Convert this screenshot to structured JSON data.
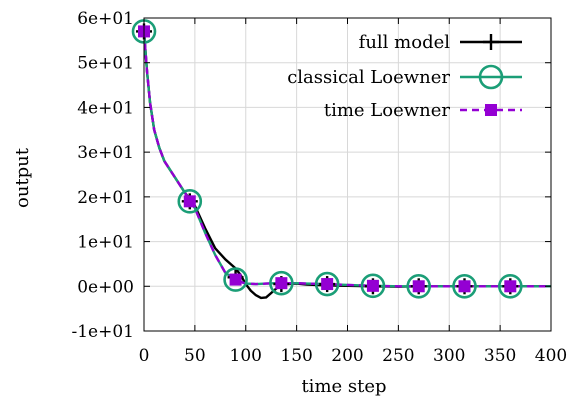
{
  "chart_data": {
    "type": "line",
    "title": "",
    "xlabel": "time step",
    "ylabel": "output",
    "xlim": [
      0,
      400
    ],
    "ylim": [
      -10,
      60
    ],
    "x_ticks": [
      "0",
      "50",
      "100",
      "150",
      "200",
      "250",
      "300",
      "350",
      "400"
    ],
    "y_ticks": [
      "-1e+01",
      "0e+00",
      "1e+01",
      "2e+01",
      "3e+01",
      "4e+01",
      "5e+01",
      "6e+01"
    ],
    "grid": true,
    "legend_position": "top-right",
    "series": [
      {
        "name": "full model",
        "color": "#000000",
        "style": "solid line with plus markers",
        "x": [
          0,
          3,
          6,
          10,
          15,
          20,
          30,
          40,
          45,
          50,
          60,
          70,
          80,
          90,
          95,
          100,
          105,
          110,
          115,
          120,
          125,
          130,
          135,
          140,
          150,
          160,
          180,
          200,
          225,
          250,
          270,
          300,
          315,
          340,
          360,
          380,
          400
        ],
        "y": [
          57,
          48,
          41,
          35,
          31,
          28,
          24.5,
          21,
          19.5,
          18,
          13,
          8.5,
          6,
          4,
          2.5,
          0.5,
          -1,
          -2,
          -2.6,
          -2.5,
          -1.5,
          -0.5,
          0.2,
          0.5,
          0.6,
          0.4,
          0.2,
          0.1,
          0.0,
          -0.1,
          0.0,
          0.0,
          0.0,
          0.0,
          0.0,
          0.0,
          0.0
        ],
        "marker_x": [
          0,
          45,
          90,
          135,
          180,
          225,
          270,
          315,
          360
        ],
        "marker_y": [
          57,
          19,
          2,
          0.5,
          0.5,
          0,
          0,
          0,
          0
        ]
      },
      {
        "name": "classical Loewner",
        "color": "#1b9e77",
        "style": "solid line with open circle markers",
        "x": [
          0,
          3,
          6,
          10,
          15,
          20,
          30,
          40,
          45,
          50,
          60,
          70,
          80,
          90,
          95,
          100,
          110,
          120,
          130,
          135,
          140,
          150,
          160,
          180,
          200,
          225,
          250,
          270,
          300,
          315,
          340,
          360,
          380,
          400
        ],
        "y": [
          57,
          48,
          41,
          35,
          31,
          28,
          24.5,
          21,
          19.2,
          17.5,
          12,
          7,
          3,
          1.5,
          1.0,
          0.6,
          0.5,
          0.6,
          0.7,
          0.7,
          0.7,
          0.7,
          0.6,
          0.5,
          0.3,
          0.1,
          0.0,
          0.0,
          0.0,
          0.0,
          0.0,
          0.0,
          0.0,
          0.0
        ],
        "marker_x": [
          0,
          45,
          90,
          135,
          180,
          225,
          270,
          315,
          360
        ],
        "marker_y": [
          57,
          19,
          1.5,
          0.7,
          0.5,
          0.1,
          0,
          0,
          0
        ]
      },
      {
        "name": "time Loewner",
        "color": "#9400d3",
        "style": "dashed line with filled square markers",
        "x": [
          0,
          3,
          6,
          10,
          15,
          20,
          30,
          40,
          45,
          50,
          60,
          70,
          80,
          90,
          95,
          100,
          110,
          120,
          130,
          135,
          140,
          150,
          160,
          180,
          200,
          225,
          250,
          270,
          300,
          315,
          340,
          360,
          380,
          400
        ],
        "y": [
          57,
          48,
          41,
          35,
          31,
          28,
          24.5,
          21,
          19.2,
          17.5,
          12,
          7,
          3,
          1.5,
          1.0,
          0.6,
          0.5,
          0.6,
          0.7,
          0.7,
          0.7,
          0.7,
          0.6,
          0.5,
          0.3,
          0.1,
          0.0,
          0.0,
          0.0,
          0.0,
          0.0,
          0.0,
          0.0,
          0.0
        ],
        "marker_x": [
          0,
          45,
          90,
          135,
          180,
          225,
          270,
          315,
          360
        ],
        "marker_y": [
          57,
          19,
          1.5,
          0.7,
          0.5,
          0.1,
          0,
          0,
          0
        ]
      }
    ]
  }
}
